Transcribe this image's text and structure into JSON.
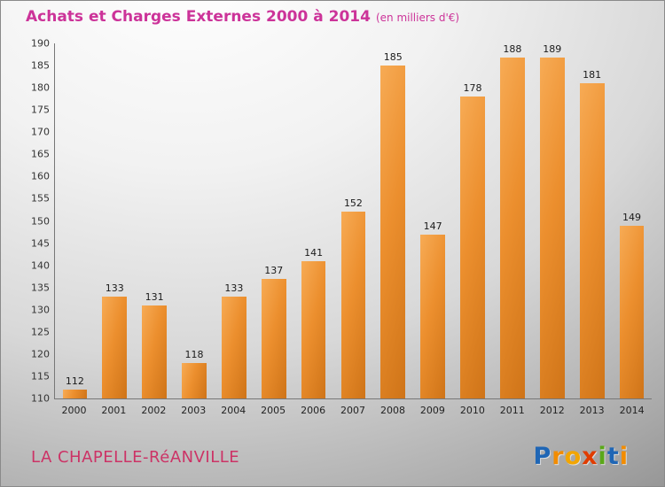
{
  "header": {
    "title": "Achats et Charges Externes 2000 à 2014",
    "subtitle": "(en milliers d'€)"
  },
  "colors": {
    "title": "#cc3399",
    "location": "#cc3366",
    "bar_light": "#f7ab55",
    "bar_dark": "#cf7418",
    "axis": "#777777"
  },
  "chart_data": {
    "type": "bar",
    "title": "Achats et Charges Externes 2000 à 2014",
    "subtitle": "(en milliers d'€)",
    "categories": [
      "2000",
      "2001",
      "2002",
      "2003",
      "2004",
      "2005",
      "2006",
      "2007",
      "2008",
      "2009",
      "2010",
      "2011",
      "2012",
      "2013",
      "2014"
    ],
    "values": [
      112,
      133,
      131,
      118,
      133,
      137,
      141,
      152,
      185,
      147,
      178,
      188,
      189,
      181,
      149
    ],
    "xlabel": "",
    "ylabel": "",
    "ylim": [
      110,
      190
    ],
    "yticks": [
      110,
      115,
      120,
      125,
      130,
      135,
      140,
      145,
      150,
      155,
      160,
      165,
      170,
      175,
      180,
      185,
      190
    ],
    "grid": false,
    "legend": false,
    "bar_color": "orange gradient",
    "value_labels": true
  },
  "footer": {
    "location": "LA CHAPELLE-RéANVILLE",
    "logo_letters": [
      {
        "ch": "P",
        "color": "#1f66b5"
      },
      {
        "ch": "r",
        "color": "#f28c00"
      },
      {
        "ch": "o",
        "color": "#f2a500"
      },
      {
        "ch": "x",
        "color": "#e03c00"
      },
      {
        "ch": "i",
        "color": "#5aa818"
      },
      {
        "ch": "t",
        "color": "#1f66b5"
      },
      {
        "ch": "i",
        "color": "#f28c00"
      }
    ]
  }
}
